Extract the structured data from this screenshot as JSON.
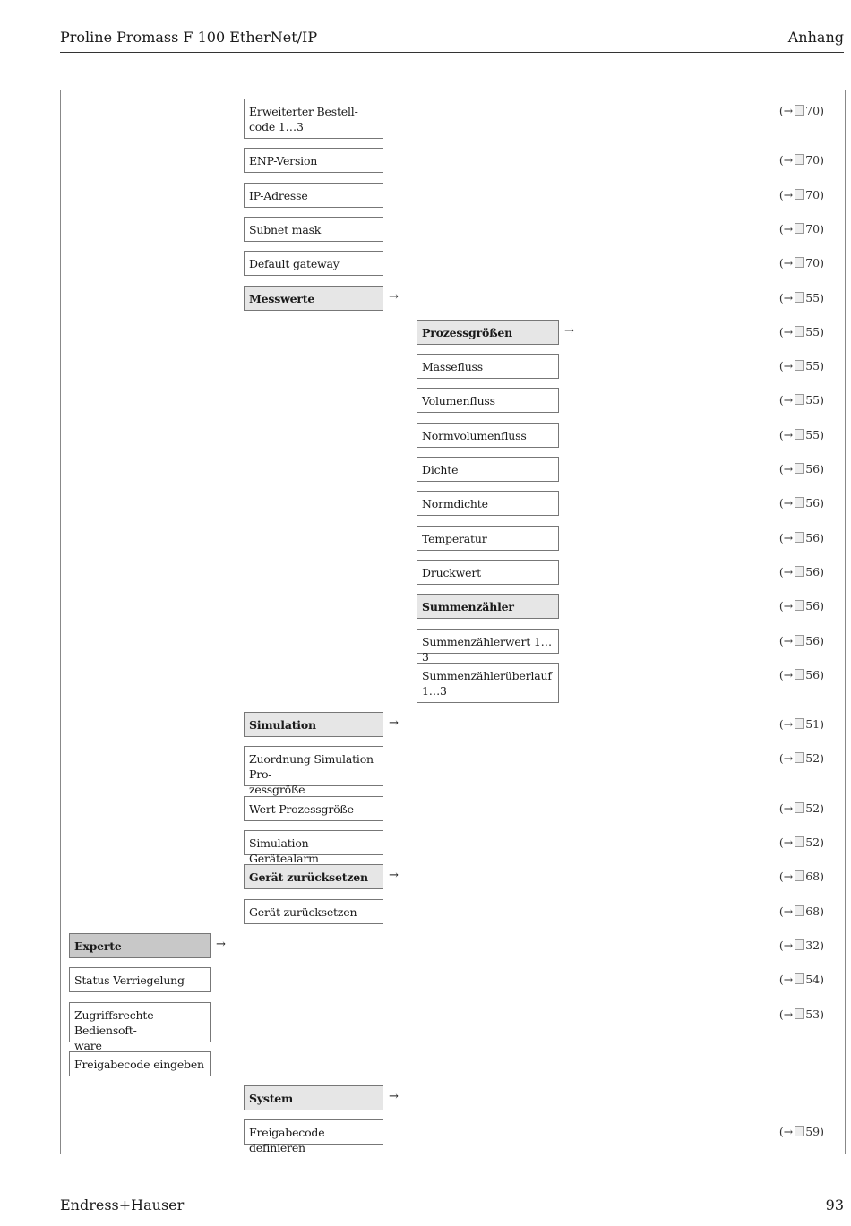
{
  "header": {
    "title": "Proline Promass F 100 EtherNet/IP",
    "section": "Anhang"
  },
  "footer": {
    "company": "Endress+Hauser",
    "page": "93"
  },
  "ref_arrow": "(→",
  "ref_icon": "page-reference-icon",
  "colors": {
    "group_fill": "#e6e6e6",
    "top_menu_fill": "#c8c8c8"
  },
  "rows": [
    {
      "label": "Erweiterter Bestell-\ncode 1…3",
      "level": 1,
      "kind": "param",
      "ref": "70)"
    },
    {
      "label": "ENP-Version",
      "level": 1,
      "kind": "param",
      "ref": "70)"
    },
    {
      "label": "IP-Adresse",
      "level": 1,
      "kind": "param",
      "ref": "70)"
    },
    {
      "label": "Subnet mask",
      "level": 1,
      "kind": "param",
      "ref": "70)"
    },
    {
      "label": "Default gateway",
      "level": 1,
      "kind": "param",
      "ref": "70)"
    },
    {
      "label": "Messwerte",
      "level": 1,
      "kind": "group",
      "ref": "55)"
    },
    {
      "label": "Prozessgrößen",
      "level": 2,
      "kind": "group",
      "ref": "55)"
    },
    {
      "label": "Massefluss",
      "level": 2,
      "kind": "param",
      "ref": "55)"
    },
    {
      "label": "Volumenfluss",
      "level": 2,
      "kind": "param",
      "ref": "55)"
    },
    {
      "label": "Normvolumenfluss",
      "level": 2,
      "kind": "param",
      "ref": "55)"
    },
    {
      "label": "Dichte",
      "level": 2,
      "kind": "param",
      "ref": "56)"
    },
    {
      "label": "Normdichte",
      "level": 2,
      "kind": "param",
      "ref": "56)"
    },
    {
      "label": "Temperatur",
      "level": 2,
      "kind": "param",
      "ref": "56)"
    },
    {
      "label": "Druckwert",
      "level": 2,
      "kind": "param",
      "ref": "56)"
    },
    {
      "label": "Summenzähler",
      "level": 2,
      "kind": "group-noarrow",
      "ref": "56)"
    },
    {
      "label": "Summenzählerwert 1…3",
      "level": 2,
      "kind": "param",
      "ref": "56)"
    },
    {
      "label": "Summenzählerüberlauf\n1…3",
      "level": 2,
      "kind": "param",
      "ref": "56)"
    },
    {
      "label": "Simulation",
      "level": 1,
      "kind": "group",
      "ref": "51)"
    },
    {
      "label": "Zuordnung Simulation Pro-\nzessgröße",
      "level": 1,
      "kind": "param",
      "ref": "52)"
    },
    {
      "label": "Wert Prozessgröße",
      "level": 1,
      "kind": "param",
      "ref": "52)"
    },
    {
      "label": "Simulation Gerätealarm",
      "level": 1,
      "kind": "param",
      "ref": "52)"
    },
    {
      "label": "Gerät zurücksetzen",
      "level": 1,
      "kind": "group",
      "ref": "68)"
    },
    {
      "label": "Gerät zurücksetzen",
      "level": 1,
      "kind": "param",
      "ref": "68)"
    },
    {
      "label": "Experte",
      "level": 0,
      "kind": "top",
      "ref": "32)"
    },
    {
      "label": "Status Verriegelung",
      "level": 0,
      "kind": "param",
      "ref": "54)"
    },
    {
      "label": "Zugriffsrechte Bediensoft-\nware",
      "level": 0,
      "kind": "param",
      "ref": "53)"
    },
    {
      "label": "Freigabecode eingeben",
      "level": 0,
      "kind": "param",
      "ref": ""
    },
    {
      "label": "System",
      "level": 1,
      "kind": "group",
      "ref": ""
    },
    {
      "label": "Freigabecode definieren",
      "level": 1,
      "kind": "param",
      "ref": "59)"
    }
  ]
}
